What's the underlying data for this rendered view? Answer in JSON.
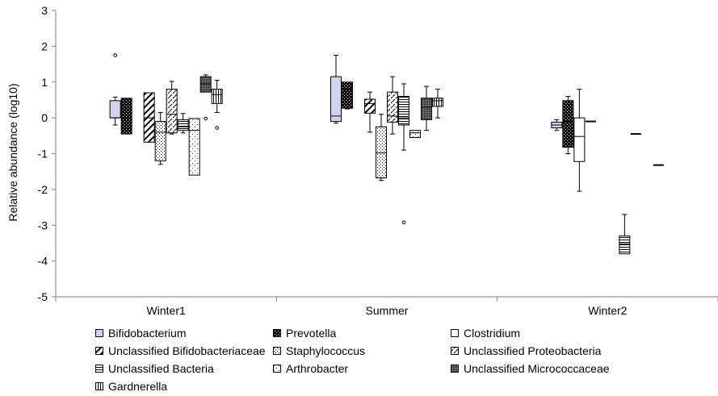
{
  "chart_data": {
    "type": "boxplot",
    "title": "",
    "xlabel": "",
    "ylabel": "Relative abundance (log10)",
    "ylim": [
      -5,
      3
    ],
    "yticks": [
      3,
      2,
      1,
      0,
      -1,
      -2,
      -3,
      -4,
      -5
    ],
    "categories": [
      "Winter1",
      "Summer",
      "Winter2"
    ],
    "legend_position": "bottom",
    "series": [
      {
        "name": "Bifidobacterium",
        "pattern": "light-blue",
        "boxes": [
          {
            "min": -0.2,
            "q1": 0.0,
            "median": 0.0,
            "q3": 0.48,
            "max": 0.58,
            "outliers": [
              1.75
            ]
          },
          {
            "min": -0.15,
            "q1": -0.1,
            "median": 0.05,
            "q3": 1.15,
            "max": 1.75,
            "outliers": []
          },
          {
            "min": -0.35,
            "q1": -0.28,
            "median": -0.2,
            "q3": -0.12,
            "max": -0.05,
            "outliers": []
          }
        ]
      },
      {
        "name": "Prevotella",
        "pattern": "checker-dark",
        "boxes": [
          {
            "min": -0.45,
            "q1": -0.45,
            "median": 0.0,
            "q3": 0.55,
            "max": 0.55,
            "outliers": []
          },
          {
            "min": 0.25,
            "q1": 0.27,
            "median": 0.8,
            "q3": 1.0,
            "max": 1.0,
            "outliers": []
          },
          {
            "min": -1.0,
            "q1": -0.82,
            "median": -0.1,
            "q3": 0.48,
            "max": 0.6,
            "outliers": []
          }
        ]
      },
      {
        "name": "Clostridium",
        "pattern": "white",
        "boxes": [
          null,
          null,
          {
            "min": -2.05,
            "q1": -1.22,
            "median": -0.52,
            "q3": 0.0,
            "max": 0.8,
            "outliers": []
          }
        ]
      },
      {
        "name": "Unclassified Bifidobacteriaceae",
        "pattern": "wide-diagonal",
        "boxes": [
          {
            "min": -0.68,
            "q1": -0.68,
            "median": 0.0,
            "q3": 0.7,
            "max": 0.7,
            "outliers": []
          },
          {
            "min": -0.4,
            "q1": 0.13,
            "median": 0.4,
            "q3": 0.52,
            "max": 0.72,
            "outliers": []
          },
          {
            "min": -0.1,
            "q1": -0.1,
            "median": -0.1,
            "q3": -0.1,
            "max": -0.1,
            "outliers": []
          }
        ]
      },
      {
        "name": "Staphylococcus",
        "pattern": "dots",
        "boxes": [
          {
            "min": -1.3,
            "q1": -1.2,
            "median": -0.4,
            "q3": -0.1,
            "max": 0.15,
            "outliers": []
          },
          {
            "min": -1.75,
            "q1": -1.68,
            "median": -0.98,
            "q3": -0.25,
            "max": 0.1,
            "outliers": []
          },
          null
        ]
      },
      {
        "name": "Unclassified Proteobacteria",
        "pattern": "dashed-diagonal",
        "boxes": [
          {
            "min": -0.45,
            "q1": -0.42,
            "median": 0.1,
            "q3": 0.8,
            "max": 1.02,
            "outliers": []
          },
          {
            "min": -0.45,
            "q1": -0.12,
            "median": 0.05,
            "q3": 0.72,
            "max": 1.15,
            "outliers": []
          },
          null
        ]
      },
      {
        "name": "Unclassified Bacteria",
        "pattern": "horizontal-lines",
        "boxes": [
          {
            "min": -0.42,
            "q1": -0.35,
            "median": -0.25,
            "q3": -0.05,
            "max": 0.12,
            "outliers": []
          },
          {
            "min": -0.9,
            "q1": -0.2,
            "median": 0.0,
            "q3": 0.6,
            "max": 0.95,
            "outliers": [
              -2.92
            ]
          },
          {
            "min": -3.8,
            "q1": -3.8,
            "median": -3.52,
            "q3": -3.3,
            "max": -2.7,
            "outliers": []
          }
        ]
      },
      {
        "name": "Arthrobacter",
        "pattern": "sparse-dots",
        "boxes": [
          {
            "min": -1.6,
            "q1": -1.6,
            "median": -0.35,
            "q3": -0.02,
            "max": -0.02,
            "outliers": []
          },
          {
            "min": -0.55,
            "q1": -0.55,
            "median": -0.42,
            "q3": -0.35,
            "max": -0.35,
            "outliers": []
          },
          {
            "min": -0.45,
            "q1": -0.45,
            "median": -0.45,
            "q3": -0.45,
            "max": -0.45,
            "outliers": []
          }
        ]
      },
      {
        "name": "Unclassified Micrococcaceae",
        "pattern": "grid-dark",
        "boxes": [
          {
            "min": 0.72,
            "q1": 0.72,
            "median": 0.95,
            "q3": 1.15,
            "max": 1.2,
            "outliers": [
              -0.02
            ]
          },
          {
            "min": -0.35,
            "q1": -0.05,
            "median": 0.3,
            "q3": 0.55,
            "max": 0.88,
            "outliers": []
          },
          null
        ]
      },
      {
        "name": "Gardnerella",
        "pattern": "vertical-lines",
        "boxes": [
          {
            "min": 0.15,
            "q1": 0.4,
            "median": 0.65,
            "q3": 0.8,
            "max": 1.05,
            "outliers": [
              -0.28
            ]
          },
          {
            "min": 0.0,
            "q1": 0.32,
            "median": 0.48,
            "q3": 0.55,
            "max": 0.8,
            "outliers": []
          },
          {
            "min": -1.32,
            "q1": -1.32,
            "median": -1.32,
            "q3": -1.32,
            "max": -1.32,
            "outliers": []
          }
        ]
      }
    ]
  }
}
